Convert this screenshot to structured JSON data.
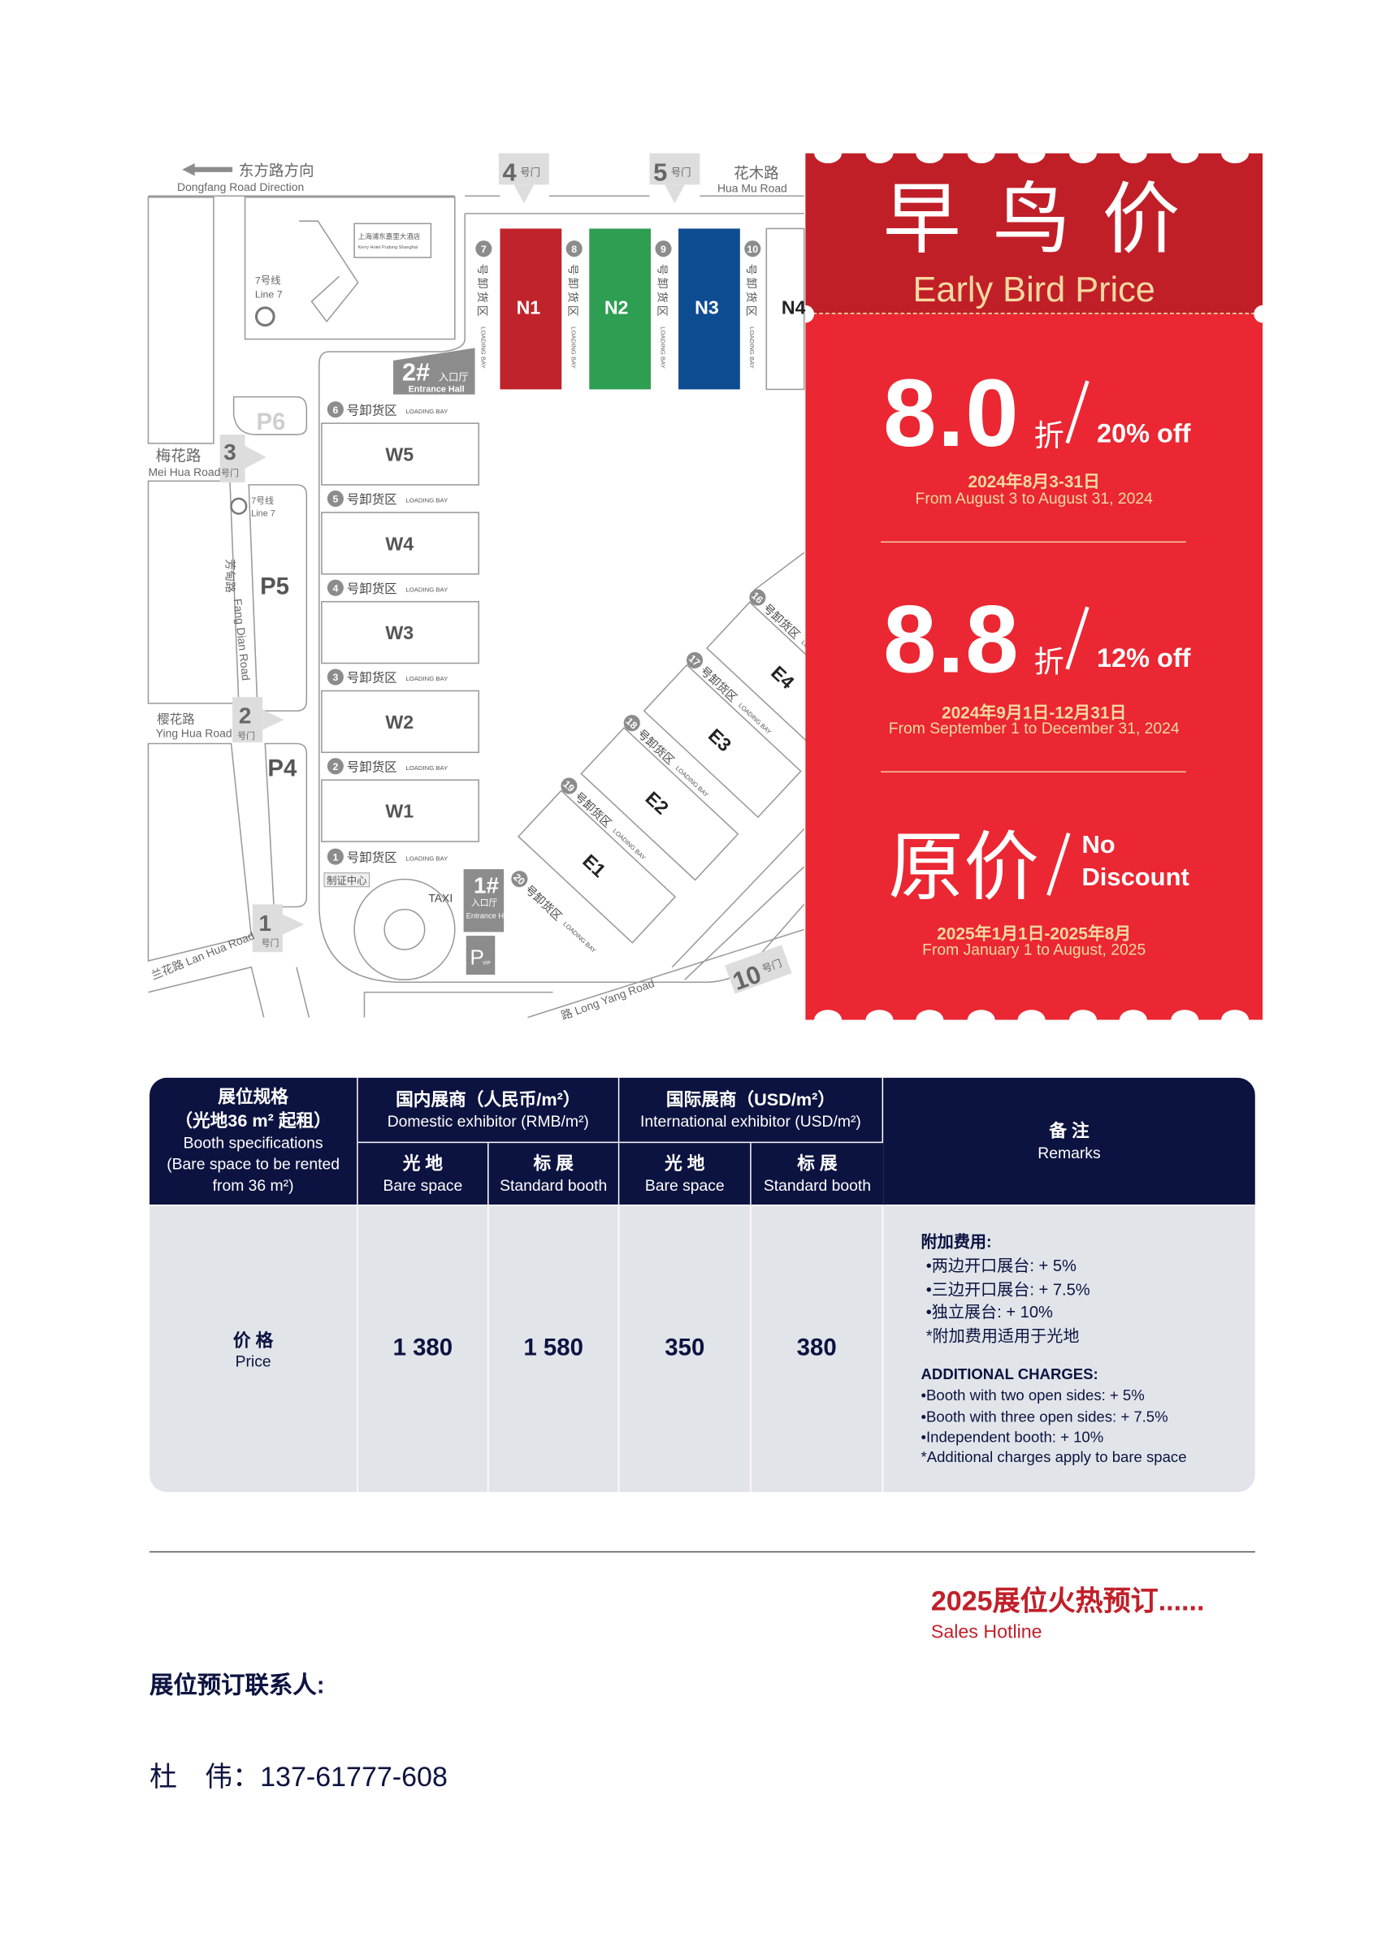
{
  "map": {
    "dongfang_cn": "东方路方向",
    "dongfang_en": "Dongfang Road Direction",
    "huamu_cn": "花木路",
    "huamu_en": "Hua Mu Road",
    "meihua_cn": "梅花路",
    "meihua_en": "Mei Hua Road",
    "yinghua_cn": "樱花路",
    "yinghua_en": "Ying Hua Road",
    "lanhua": "兰花路 Lan Hua Road",
    "fangdian_cn": "芳甸路",
    "fangdian_en": "Fang Dian Road",
    "longyang": "路 Long Yang Road",
    "hotel_cn": "上海浦东嘉里大酒店",
    "hotel_en": "Kerry Hotel Pudong Shanghai",
    "metro_cn": "7号线",
    "metro_en": "Line 7",
    "gate_suffix": "号门",
    "gates": [
      "1",
      "2",
      "3",
      "4",
      "5",
      "10"
    ],
    "bay_cn": "号卸货区",
    "bay_en": "LOADING BAY",
    "bays": [
      "1",
      "2",
      "3",
      "4",
      "5",
      "6",
      "7",
      "8",
      "9",
      "10",
      "16",
      "17",
      "18",
      "19",
      "20"
    ],
    "halls_north": [
      "N1",
      "N2",
      "N3",
      "N4"
    ],
    "halls_west": [
      "W5",
      "W4",
      "W3",
      "W2",
      "W1"
    ],
    "halls_east": [
      "E1",
      "E2",
      "E3",
      "E4"
    ],
    "parking": [
      "P6",
      "P5",
      "P4"
    ],
    "entrance2": "2#",
    "entrance1": "1#",
    "entrance_cn": "入口厅",
    "entrance_en": "Entrance Hall",
    "taxi": "TAXI",
    "cert_center": "制证中心",
    "vip_parking": "P",
    "vip_label": "VIP",
    "colors": {
      "N1": "#c0232b",
      "N2": "#2e9e52",
      "N3": "#0e4c92"
    }
  },
  "promo": {
    "title_cn": "早 鸟 价",
    "title_en": "Early Bird Price",
    "tiers": [
      {
        "discount": "8.0",
        "unit": "折",
        "off": "20% off",
        "date_cn": "2024年8月3-31日",
        "date_en": "From August 3 to August 31, 2024"
      },
      {
        "discount": "8.8",
        "unit": "折",
        "off": "12% off",
        "date_cn": "2024年9月1日-12月31日",
        "date_en": "From September 1 to December 31, 2024"
      }
    ],
    "full": {
      "label_cn": "原价",
      "off_1": "No",
      "off_2": "Discount",
      "date_cn": "2025年1月1日-2025年8月",
      "date_en": "From January 1 to August, 2025"
    }
  },
  "table": {
    "spec_cn": "展位规格",
    "spec_cn2": "（光地36 m² 起租）",
    "spec_en": "Booth specifications",
    "spec_en2": "(Bare space to be rented from 36 m²)",
    "domestic_cn": "国内展商（人民币/m²）",
    "domestic_en": "Domestic exhibitor (RMB/m²)",
    "intl_cn": "国际展商（USD/m²）",
    "intl_en": "International exhibitor (USD/m²)",
    "bare_cn": "光  地",
    "bare_en": "Bare space",
    "std_cn": "标  展",
    "std_en": "Standard booth",
    "remarks_cn": "备  注",
    "remarks_en": "Remarks",
    "price_cn": "价  格",
    "price_en": "Price",
    "prices": [
      "1 380",
      "1 580",
      "350",
      "380"
    ],
    "remarks": {
      "title_cn": "附加费用:",
      "items_cn": [
        "•两边开口展台: + 5%",
        "•三边开口展台: + 7.5%",
        "•独立展台: + 10%",
        "*附加费用适用于光地"
      ],
      "title_en": "ADDITIONAL CHARGES:",
      "items_en": [
        "•Booth with two open sides: + 5%",
        "•Booth with three open sides: + 7.5%",
        "•Independent booth: + 10%",
        "*Additional charges apply to bare space"
      ]
    }
  },
  "footer": {
    "hotline_cn": "2025展位火热预订......",
    "hotline_en": "Sales Hotline",
    "contact_label": "展位预订联系人:",
    "contact": "杜　伟：137-61777-608"
  }
}
